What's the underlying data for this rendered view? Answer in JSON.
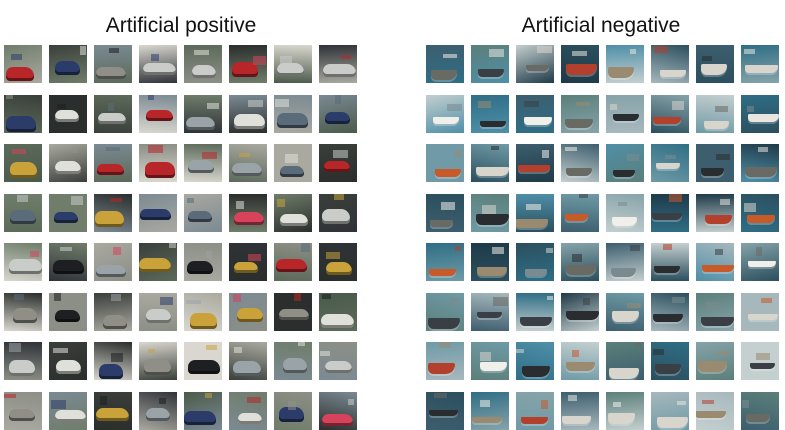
{
  "figure": {
    "panels": [
      {
        "id": "positive",
        "title": "Artificial positive",
        "subject": "car",
        "rows": 8,
        "cols": 8,
        "palette": {
          "backgrounds": [
            "#3a3f3a",
            "#5c6a5a",
            "#8c8f86",
            "#2f3338",
            "#6f7d6a",
            "#a9a9a0",
            "#4a5a4a",
            "#d9d7cf",
            "#2a2e2c",
            "#7b8a93"
          ],
          "objects": [
            "#c9ccc9",
            "#1d1f22",
            "#b8262a",
            "#5a6b7a",
            "#e0e0da",
            "#8f8f88",
            "#2b3c6a",
            "#c9a23a",
            "#d6435a",
            "#9aa3a8"
          ]
        }
      },
      {
        "id": "negative",
        "title": "Artificial negative",
        "subject": "ship",
        "rows": 8,
        "cols": 8,
        "palette": {
          "backgrounds": [
            "#2f6e86",
            "#4f8fa8",
            "#6f9aa6",
            "#a7b8bd",
            "#2b4f5e",
            "#5b7f7a",
            "#86a3a9",
            "#3d5e6e",
            "#c4cfcf",
            "#1f3a48"
          ],
          "objects": [
            "#d8d6cc",
            "#2a2d30",
            "#b3402c",
            "#e8e6df",
            "#6a6a64",
            "#9a8a70",
            "#c85a2a",
            "#3a3f45",
            "#f0efe9",
            "#7a8a8f"
          ]
        }
      }
    ]
  }
}
